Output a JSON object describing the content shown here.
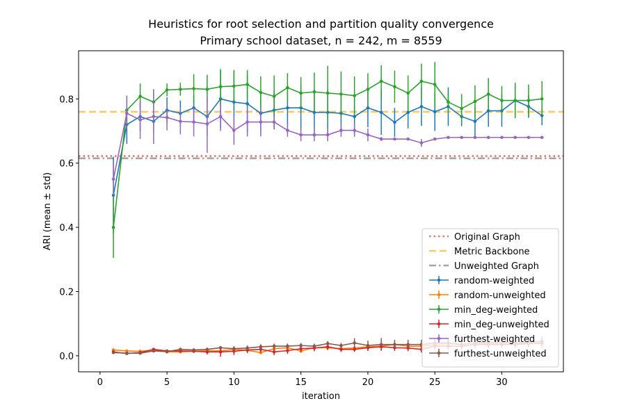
{
  "chart_data": {
    "type": "line",
    "title_lines": [
      "Heuristics for root selection and partition quality convergence",
      "Primary school dataset, n = 242, m = 8559"
    ],
    "xlabel": "iteration",
    "ylabel": "ARI (mean ± std)",
    "xlim": [
      -1.6,
      34.6
    ],
    "ylim": [
      -0.05,
      0.95
    ],
    "xticks": [
      0,
      5,
      10,
      15,
      20,
      25,
      30
    ],
    "yticks": [
      0.0,
      0.2,
      0.4,
      0.6,
      0.8
    ],
    "grid": false,
    "legend_position": "lower right",
    "x": [
      1,
      2,
      3,
      4,
      5,
      6,
      7,
      8,
      9,
      10,
      11,
      12,
      13,
      14,
      15,
      16,
      17,
      18,
      19,
      20,
      21,
      22,
      23,
      24,
      25,
      26,
      27,
      28,
      29,
      30,
      31,
      32,
      33
    ],
    "reference_lines": [
      {
        "name": "Original Graph",
        "y": 0.622,
        "color": "#e8756a",
        "style": "dotted"
      },
      {
        "name": "Metric Backbone",
        "y": 0.76,
        "color": "#ffc96b",
        "style": "dashed"
      },
      {
        "name": "Unweighted Graph",
        "y": 0.615,
        "color": "#a5a5a5",
        "style": "dashdot"
      }
    ],
    "series": [
      {
        "name": "random-weighted",
        "color": "#1f77b4",
        "values": [
          0.5,
          0.72,
          0.745,
          0.73,
          0.765,
          0.755,
          0.772,
          0.745,
          0.8,
          0.79,
          0.785,
          0.755,
          0.765,
          0.772,
          0.772,
          0.758,
          0.758,
          0.755,
          0.745,
          0.772,
          0.758,
          0.727,
          0.758,
          0.776,
          0.76,
          0.776,
          0.745,
          0.73,
          0.763,
          0.763,
          0.795,
          0.776,
          0.748
        ],
        "errors": [
          0.12,
          0.06,
          0.045,
          0.035,
          0.04,
          0.04,
          0.04,
          0.06,
          0.09,
          0.095,
          0.09,
          0.06,
          0.06,
          0.06,
          0.07,
          0.07,
          0.07,
          0.06,
          0.06,
          0.06,
          0.07,
          0.045,
          0.05,
          0.06,
          0.06,
          0.06,
          0.03,
          0.045,
          0.05,
          0.05,
          0.05,
          0.035,
          0.03
        ]
      },
      {
        "name": "random-unweighted",
        "color": "#ff7f0e",
        "values": [
          0.018,
          0.015,
          0.014,
          0.018,
          0.012,
          0.012,
          0.014,
          0.016,
          0.015,
          0.02,
          0.017,
          0.01,
          0.022,
          0.025,
          0.015,
          0.025,
          0.025,
          0.022,
          0.024,
          0.028,
          0.03,
          0.035,
          0.03,
          0.03,
          0.035,
          0.038,
          0.035,
          0.04,
          0.038,
          0.04,
          0.04,
          0.038,
          0.038
        ],
        "errors": [
          0.006,
          0.004,
          0.004,
          0.004,
          0.004,
          0.004,
          0.004,
          0.005,
          0.005,
          0.005,
          0.005,
          0.004,
          0.006,
          0.006,
          0.006,
          0.006,
          0.007,
          0.007,
          0.007,
          0.008,
          0.008,
          0.008,
          0.008,
          0.008,
          0.01,
          0.01,
          0.01,
          0.012,
          0.012,
          0.012,
          0.012,
          0.012,
          0.015
        ]
      },
      {
        "name": "min_deg-weighted",
        "color": "#2ca02c",
        "values": [
          0.4,
          0.765,
          0.808,
          0.79,
          0.828,
          0.83,
          0.832,
          0.83,
          0.838,
          0.84,
          0.845,
          0.82,
          0.808,
          0.835,
          0.818,
          0.822,
          0.818,
          0.815,
          0.81,
          0.83,
          0.855,
          0.838,
          0.818,
          0.855,
          0.845,
          0.79,
          0.77,
          0.792,
          0.815,
          0.795,
          0.795,
          0.795,
          0.8
        ],
        "errors": [
          0.095,
          0.045,
          0.04,
          0.04,
          0.02,
          0.02,
          0.045,
          0.045,
          0.055,
          0.05,
          0.045,
          0.05,
          0.065,
          0.045,
          0.05,
          0.06,
          0.085,
          0.07,
          0.06,
          0.05,
          0.05,
          0.05,
          0.055,
          0.055,
          0.07,
          0.03,
          0.045,
          0.05,
          0.05,
          0.045,
          0.055,
          0.05,
          0.055
        ]
      },
      {
        "name": "min_deg-unweighted",
        "color": "#d62728",
        "values": [
          0.012,
          0.007,
          0.01,
          0.02,
          0.015,
          0.015,
          0.014,
          0.012,
          0.012,
          0.014,
          0.018,
          0.02,
          0.012,
          0.016,
          0.022,
          0.024,
          0.028,
          0.02,
          0.02,
          0.025,
          0.028,
          0.025,
          0.024,
          0.02,
          0.03,
          0.03,
          0.03,
          0.035,
          0.035,
          0.035,
          0.035,
          0.038,
          0.04
        ],
        "errors": [
          0.004,
          0.003,
          0.004,
          0.004,
          0.004,
          0.004,
          0.004,
          0.008,
          0.015,
          0.012,
          0.01,
          0.01,
          0.01,
          0.01,
          0.01,
          0.01,
          0.01,
          0.008,
          0.008,
          0.01,
          0.01,
          0.01,
          0.01,
          0.01,
          0.01,
          0.01,
          0.01,
          0.01,
          0.01,
          0.01,
          0.01,
          0.01,
          0.01
        ]
      },
      {
        "name": "furthest-weighted",
        "color": "#9467bd",
        "values": [
          0.55,
          0.755,
          0.735,
          0.745,
          0.742,
          0.73,
          0.728,
          0.722,
          0.745,
          0.702,
          0.728,
          0.728,
          0.728,
          0.702,
          0.688,
          0.688,
          0.688,
          0.702,
          0.702,
          0.688,
          0.675,
          0.675,
          0.675,
          0.663,
          0.675,
          0.68,
          0.68,
          0.68,
          0.68,
          0.68,
          0.68,
          0.68,
          0.68
        ],
        "errors": [
          0.05,
          0.05,
          0.06,
          0.085,
          0.04,
          0.04,
          0.045,
          0.09,
          0.045,
          0.045,
          0.045,
          0.045,
          0.02,
          0.02,
          0.02,
          0.02,
          0.02,
          0.02,
          0.02,
          0.02,
          0.006,
          0.004,
          0.004,
          0.012,
          0.004,
          0.004,
          0.004,
          0.004,
          0.004,
          0.004,
          0.004,
          0.004,
          0.004
        ]
      },
      {
        "name": "furthest-unweighted",
        "color": "#8c564b",
        "values": [
          0.01,
          0.008,
          0.008,
          0.015,
          0.013,
          0.02,
          0.018,
          0.02,
          0.025,
          0.022,
          0.024,
          0.028,
          0.03,
          0.03,
          0.032,
          0.03,
          0.038,
          0.032,
          0.04,
          0.032,
          0.035,
          0.035,
          0.035,
          0.035,
          0.04,
          0.04,
          0.035,
          0.04,
          0.042,
          0.042,
          0.04,
          0.042,
          0.045
        ],
        "errors": [
          0.005,
          0.004,
          0.004,
          0.004,
          0.005,
          0.005,
          0.005,
          0.005,
          0.005,
          0.008,
          0.008,
          0.008,
          0.008,
          0.008,
          0.008,
          0.008,
          0.008,
          0.008,
          0.015,
          0.015,
          0.02,
          0.015,
          0.015,
          0.015,
          0.015,
          0.015,
          0.015,
          0.015,
          0.015,
          0.015,
          0.015,
          0.015,
          0.015
        ]
      }
    ]
  }
}
